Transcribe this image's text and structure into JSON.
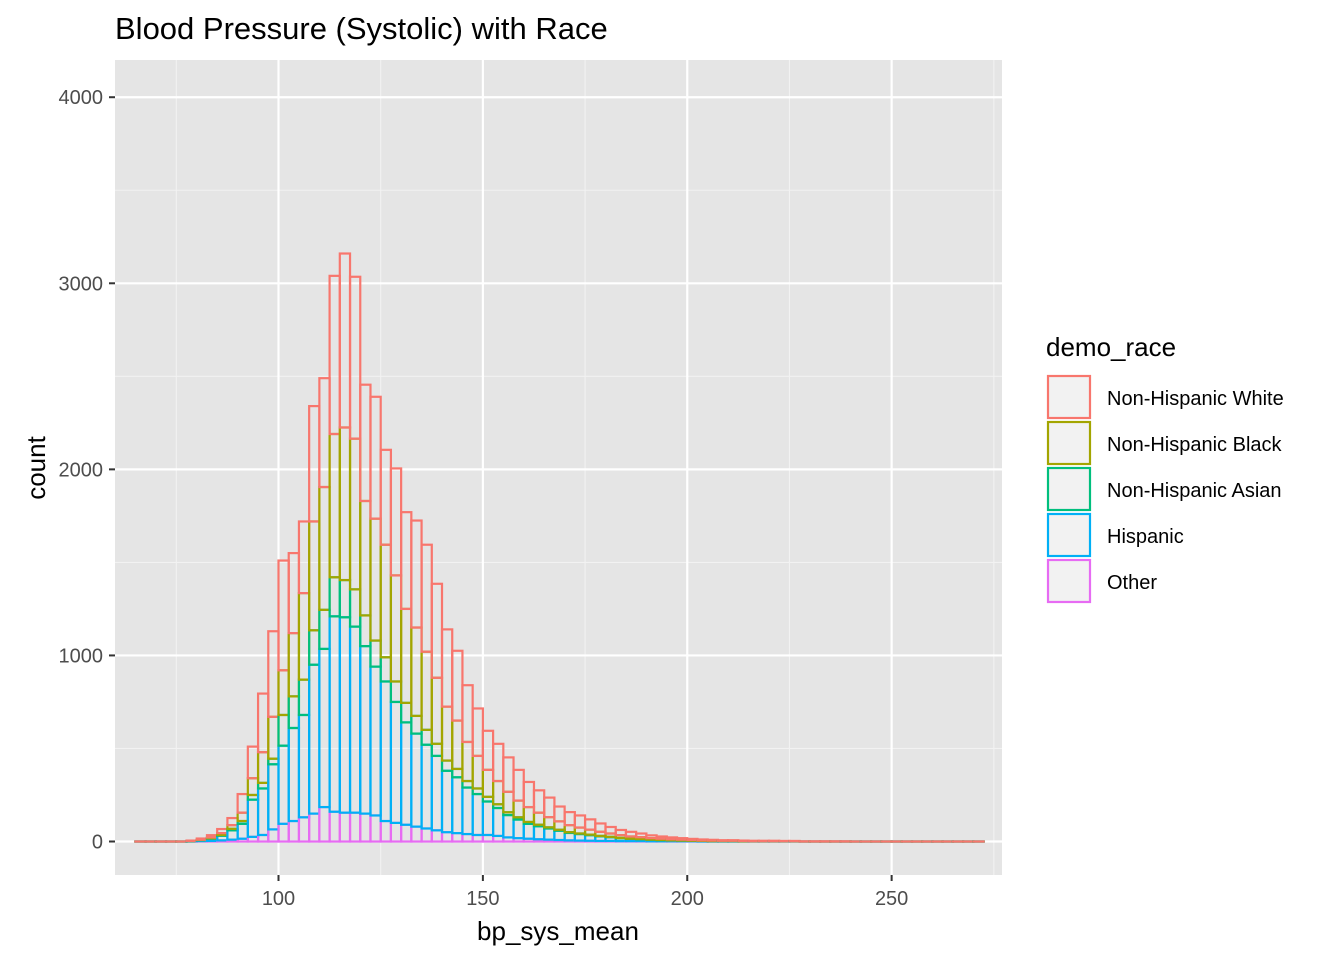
{
  "chart_data": {
    "type": "bar",
    "subtype": "stacked-histogram",
    "title": "Blood Pressure (Systolic) with Race",
    "xlabel": "bp_sys_mean",
    "ylabel": "count",
    "xlim": [
      60,
      277
    ],
    "ylim": [
      -180,
      4200
    ],
    "x_ticks": [
      100,
      150,
      200,
      250
    ],
    "y_ticks": [
      0,
      1000,
      2000,
      3000,
      4000
    ],
    "grid": true,
    "legend_position": "right",
    "legend_title": "demo_race",
    "bin_width": 2.5,
    "bin_starts": [
      65.0,
      67.5,
      70.0,
      72.5,
      75.0,
      77.5,
      80.0,
      82.5,
      85.0,
      87.5,
      90.0,
      92.5,
      95.0,
      97.5,
      100.0,
      102.5,
      105.0,
      107.5,
      110.0,
      112.5,
      115.0,
      117.5,
      120.0,
      122.5,
      125.0,
      127.5,
      130.0,
      132.5,
      135.0,
      137.5,
      140.0,
      142.5,
      145.0,
      147.5,
      150.0,
      152.5,
      155.0,
      157.5,
      160.0,
      162.5,
      165.0,
      167.5,
      170.0,
      172.5,
      175.0,
      177.5,
      180.0,
      182.5,
      185.0,
      187.5,
      190.0,
      192.5,
      195.0,
      197.5,
      200.0,
      202.5,
      205.0,
      207.5,
      210.0,
      212.5,
      215.0,
      217.5,
      220.0,
      222.5,
      225.0,
      227.5,
      230.0,
      232.5,
      235.0,
      237.5,
      240.0,
      242.5,
      245.0,
      247.5,
      250.0,
      252.5,
      255.0,
      257.5,
      260.0,
      262.5,
      265.0,
      267.5,
      270.0
    ],
    "series": [
      {
        "name": "Non-Hispanic White",
        "color": "#F8766D",
        "values": [
          0,
          0,
          0,
          0,
          0,
          2,
          6,
          12,
          22,
          38,
          100,
          170,
          315,
          460,
          590,
          430,
          385,
          620,
          585,
          850,
          935,
          870,
          625,
          655,
          510,
          575,
          520,
          575,
          575,
          505,
          415,
          375,
          305,
          255,
          210,
          200,
          185,
          165,
          135,
          120,
          105,
          80,
          70,
          65,
          55,
          45,
          35,
          28,
          25,
          20,
          15,
          12,
          10,
          8,
          6,
          5,
          4,
          3,
          3,
          2,
          2,
          2,
          2,
          1,
          1,
          1,
          1,
          1,
          1,
          1,
          0,
          0,
          0,
          0,
          0,
          0,
          0,
          0,
          0,
          0,
          0,
          0,
          0
        ]
      },
      {
        "name": "Non-Hispanic Black",
        "color": "#A3A500",
        "values": [
          0,
          0,
          0,
          0,
          0,
          1,
          2,
          5,
          10,
          20,
          45,
          90,
          165,
          225,
          240,
          340,
          465,
          585,
          660,
          770,
          820,
          810,
          615,
          655,
          605,
          570,
          505,
          475,
          420,
          355,
          290,
          260,
          210,
          175,
          145,
          125,
          110,
          90,
          80,
          65,
          55,
          45,
          38,
          32,
          27,
          22,
          18,
          15,
          12,
          10,
          8,
          7,
          6,
          5,
          4,
          3,
          3,
          2,
          2,
          2,
          1,
          1,
          1,
          1,
          1,
          0,
          0,
          0,
          0,
          0,
          0,
          0,
          0,
          0,
          0,
          0,
          0,
          0,
          0,
          0,
          0,
          0,
          0
        ]
      },
      {
        "name": "Non-Hispanic Asian",
        "color": "#00BF7D",
        "values": [
          0,
          0,
          0,
          0,
          0,
          0,
          1,
          2,
          4,
          8,
          15,
          25,
          30,
          30,
          165,
          170,
          190,
          185,
          210,
          210,
          200,
          200,
          165,
          140,
          130,
          110,
          105,
          95,
          80,
          65,
          55,
          45,
          35,
          30,
          25,
          20,
          15,
          12,
          10,
          8,
          6,
          5,
          4,
          3,
          3,
          2,
          2,
          2,
          1,
          1,
          1,
          1,
          0,
          0,
          0,
          0,
          0,
          0,
          0,
          0,
          0,
          0,
          0,
          0,
          0,
          0,
          0,
          0,
          0,
          0,
          0,
          0,
          0,
          0,
          0,
          0,
          0,
          0,
          0,
          0,
          0,
          0,
          0
        ]
      },
      {
        "name": "Hispanic",
        "color": "#00B0F6",
        "values": [
          0,
          0,
          0,
          0,
          0,
          2,
          5,
          12,
          25,
          50,
          80,
          200,
          250,
          350,
          420,
          500,
          550,
          800,
          850,
          1050,
          1050,
          1000,
          900,
          800,
          750,
          650,
          550,
          500,
          450,
          400,
          330,
          300,
          250,
          220,
          180,
          150,
          120,
          100,
          80,
          70,
          60,
          50,
          40,
          35,
          30,
          25,
          20,
          15,
          12,
          10,
          8,
          6,
          5,
          4,
          3,
          3,
          2,
          2,
          2,
          1,
          1,
          1,
          1,
          1,
          1,
          0,
          0,
          0,
          0,
          0,
          0,
          0,
          0,
          0,
          0,
          0,
          0,
          0,
          0,
          0,
          0,
          0,
          0
        ]
      },
      {
        "name": "Other",
        "color": "#E76BF3",
        "values": [
          0,
          0,
          0,
          0,
          0,
          0,
          2,
          3,
          6,
          10,
          15,
          25,
          35,
          65,
          95,
          110,
          130,
          150,
          185,
          160,
          155,
          155,
          150,
          140,
          110,
          100,
          90,
          80,
          70,
          60,
          50,
          45,
          40,
          35,
          35,
          30,
          22,
          18,
          15,
          12,
          10,
          8,
          6,
          5,
          4,
          3,
          3,
          2,
          2,
          2,
          1,
          1,
          1,
          1,
          1,
          0,
          0,
          0,
          0,
          0,
          0,
          0,
          0,
          0,
          0,
          0,
          0,
          0,
          0,
          0,
          0,
          0,
          0,
          0,
          0,
          0,
          0,
          0,
          0,
          0,
          0,
          0,
          0
        ]
      }
    ]
  },
  "colors": {
    "panel_background": "#E5E5E5",
    "grid_major": "#FFFFFF",
    "grid_minor": "#F2F2F2",
    "legend_key_fill": "#F2F2F2",
    "tick_text": "#4D4D4D"
  }
}
